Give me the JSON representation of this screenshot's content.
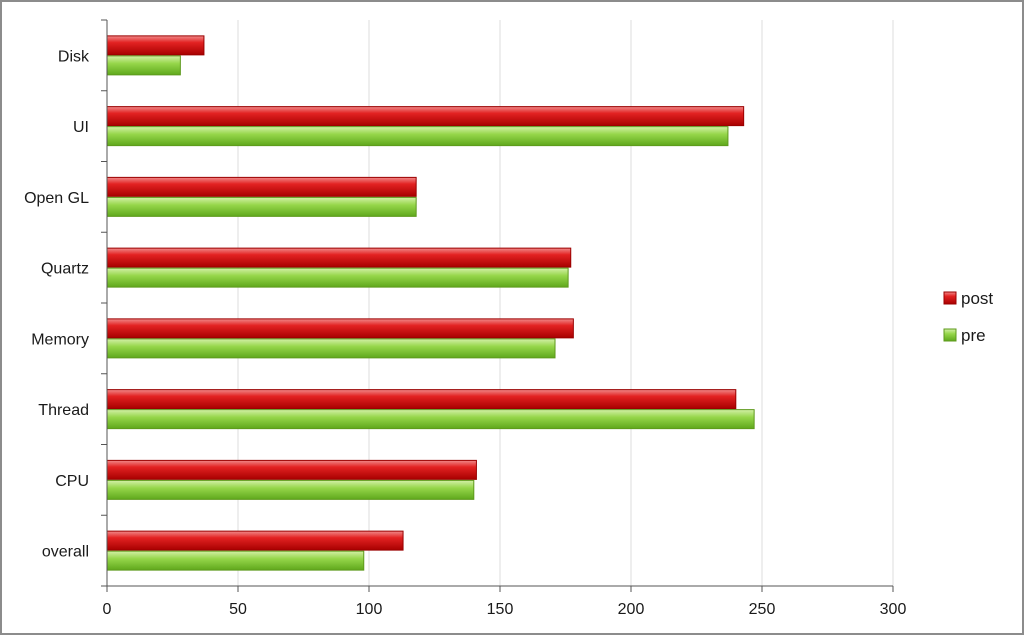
{
  "chart_data": {
    "type": "bar",
    "orientation": "horizontal",
    "categories": [
      "Disk",
      "UI",
      "Open GL",
      "Quartz",
      "Memory",
      "Thread",
      "CPU",
      "overall"
    ],
    "series": [
      {
        "name": "post",
        "color": "#cc0a0a",
        "values": [
          37,
          243,
          118,
          177,
          178,
          240,
          141,
          113
        ]
      },
      {
        "name": "pre",
        "color": "#7dc42a",
        "values": [
          28,
          237,
          118,
          176,
          171,
          247,
          140,
          98
        ]
      }
    ],
    "xticks": [
      "0",
      "50",
      "100",
      "150",
      "200",
      "250",
      "300"
    ],
    "xlim": [
      0,
      300
    ],
    "grid": true,
    "legend_position": "right"
  }
}
